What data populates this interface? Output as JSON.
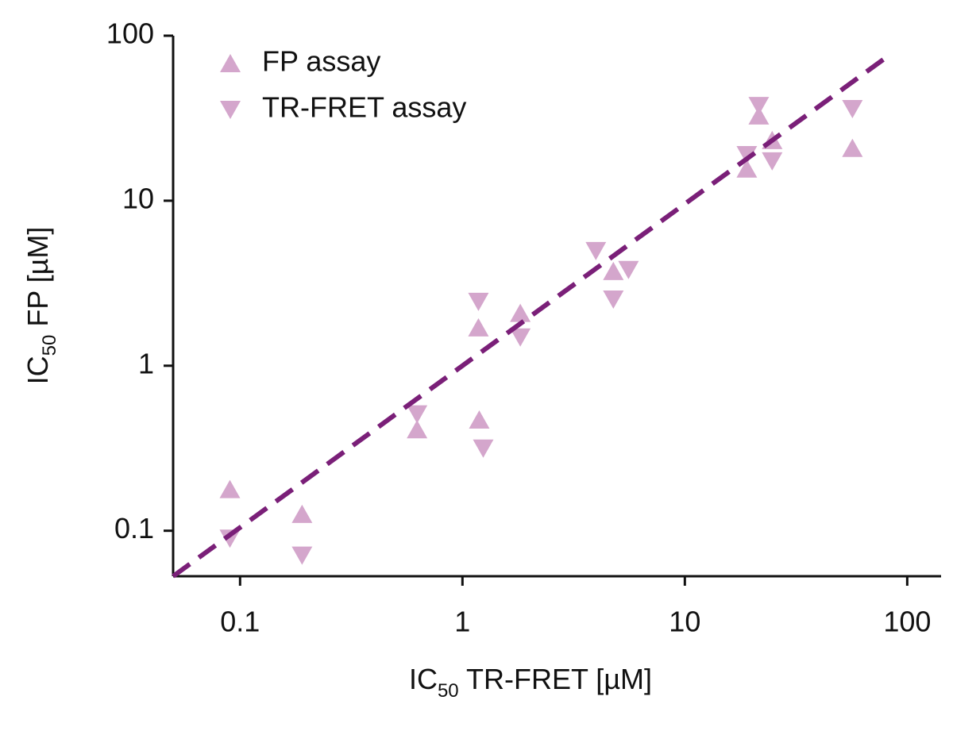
{
  "chart_data": {
    "type": "scatter",
    "xlabel": [
      "IC",
      "50",
      " TR-FRET [µM]"
    ],
    "ylabel": [
      "IC",
      "50",
      " FP [µM]"
    ],
    "xscale": "log",
    "yscale": "log",
    "xlim": [
      0.05,
      142
    ],
    "ylim": [
      0.053,
      100
    ],
    "xticks": [
      0.1,
      1,
      10,
      100
    ],
    "yticks": [
      0.1,
      1,
      10,
      100
    ],
    "legend": "upper left",
    "series": [
      {
        "name": "FP assay",
        "marker": "up",
        "color": "#d4a6cc",
        "x": [
          0.09,
          0.19,
          0.625,
          1.19,
          1.18,
          1.82,
          4.77,
          19,
          21.5,
          24.7,
          56.7
        ],
        "values": [
          0.178,
          0.126,
          0.41,
          0.47,
          1.7,
          2.08,
          3.73,
          15.6,
          32.7,
          23.2,
          20.8
        ]
      },
      {
        "name": "TR-FRET assay",
        "marker": "down",
        "color": "#d4a6cc",
        "x": [
          0.09,
          0.19,
          0.625,
          1.24,
          1.18,
          1.82,
          3.98,
          4.77,
          5.58,
          19,
          21.5,
          24.7,
          56.7
        ],
        "values": [
          0.09,
          0.071,
          0.51,
          0.316,
          2.45,
          1.49,
          4.98,
          2.53,
          3.82,
          19,
          37.7,
          17.4,
          36.1
        ]
      }
    ],
    "fit": {
      "x": [
        0.05,
        85
      ],
      "y": [
        0.053,
        78
      ],
      "color": "#7a1f78",
      "dashed": true
    }
  }
}
